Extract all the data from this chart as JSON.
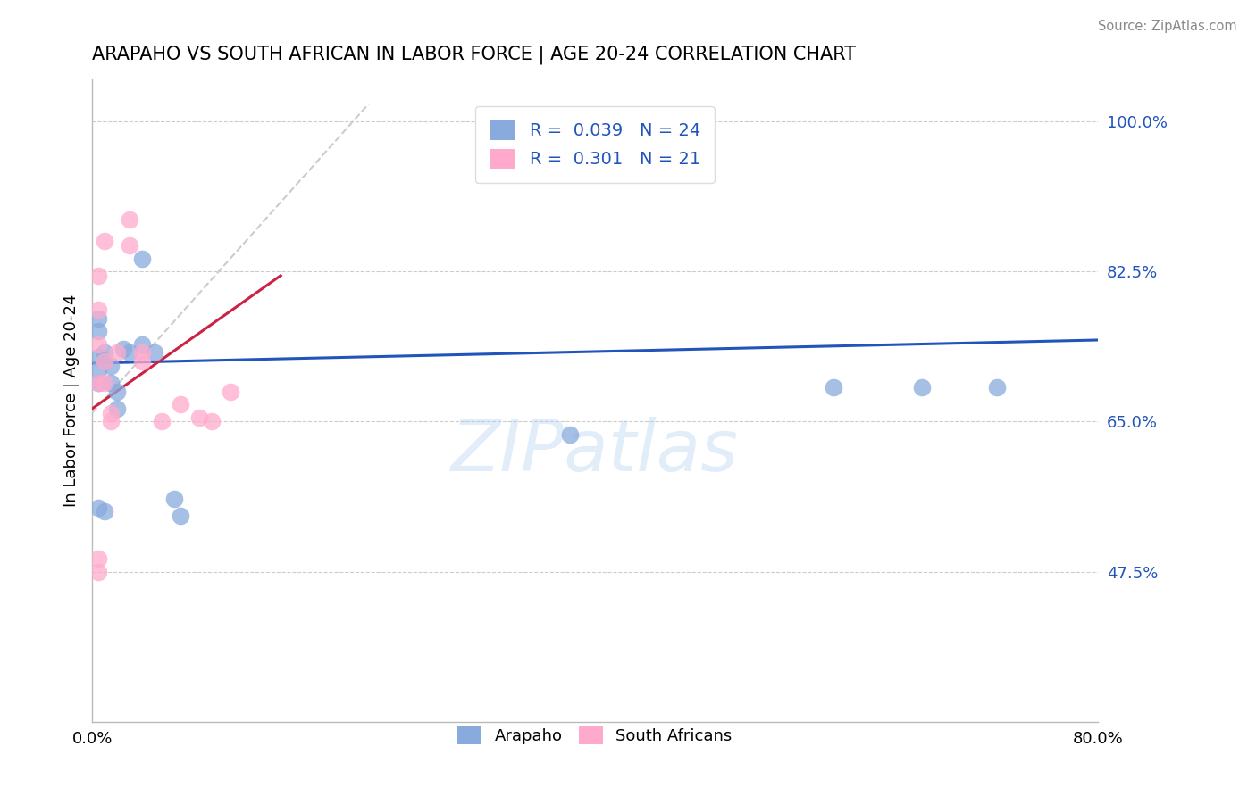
{
  "title": "ARAPAHO VS SOUTH AFRICAN IN LABOR FORCE | AGE 20-24 CORRELATION CHART",
  "source": "Source: ZipAtlas.com",
  "ylabel": "In Labor Force | Age 20-24",
  "xlim": [
    0.0,
    0.8
  ],
  "ylim": [
    0.3,
    1.05
  ],
  "xticks": [
    0.0,
    0.2,
    0.4,
    0.6,
    0.8
  ],
  "xticklabels": [
    "0.0%",
    "",
    "",
    "",
    "80.0%"
  ],
  "yticks": [
    0.475,
    0.65,
    0.825,
    1.0
  ],
  "yticklabels": [
    "47.5%",
    "65.0%",
    "82.5%",
    "100.0%"
  ],
  "legend_R_blue": "0.039",
  "legend_N_blue": "24",
  "legend_R_pink": "0.301",
  "legend_N_pink": "21",
  "blue_scatter_color": "#88AADD",
  "pink_scatter_color": "#FFAACC",
  "trendline_blue_color": "#2255BB",
  "trendline_pink_color": "#CC2244",
  "diagonal_color": "#CCCCCC",
  "blue_legend_color": "#88AADD",
  "pink_legend_color": "#FFAACC",
  "legend_text_color": "#2255BB",
  "ytick_color": "#2255BB",
  "background_color": "#FFFFFF",
  "grid_color": "#CCCCCC",
  "arapaho_x": [
    0.005,
    0.005,
    0.005,
    0.005,
    0.005,
    0.01,
    0.01,
    0.015,
    0.015,
    0.02,
    0.02,
    0.025,
    0.03,
    0.04,
    0.04,
    0.05,
    0.065,
    0.07,
    0.38,
    0.59,
    0.66,
    0.72,
    0.005,
    0.01
  ],
  "arapaho_y": [
    0.695,
    0.71,
    0.725,
    0.755,
    0.77,
    0.72,
    0.73,
    0.715,
    0.695,
    0.685,
    0.665,
    0.735,
    0.73,
    0.84,
    0.74,
    0.73,
    0.56,
    0.54,
    0.635,
    0.69,
    0.69,
    0.69,
    0.55,
    0.545
  ],
  "south_african_x": [
    0.005,
    0.005,
    0.005,
    0.005,
    0.01,
    0.01,
    0.01,
    0.015,
    0.015,
    0.02,
    0.03,
    0.03,
    0.04,
    0.04,
    0.055,
    0.07,
    0.085,
    0.095,
    0.11,
    0.005,
    0.005
  ],
  "south_african_y": [
    0.695,
    0.74,
    0.78,
    0.82,
    0.86,
    0.72,
    0.695,
    0.65,
    0.66,
    0.73,
    0.885,
    0.855,
    0.73,
    0.72,
    0.65,
    0.67,
    0.655,
    0.65,
    0.685,
    0.49,
    0.475
  ],
  "watermark": "ZIPatlas"
}
